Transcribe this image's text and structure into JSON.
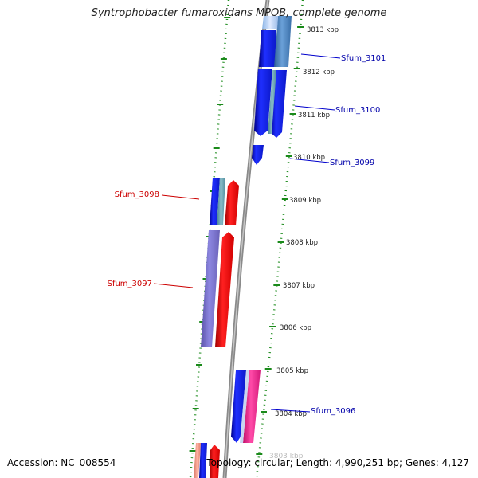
{
  "title": "Syntrophobacter fumaroxidans MPOB, complete genome",
  "accession": "Accession: NC_008554",
  "summary": "Topology: circular; Length: 4,990,251 bp; Genes: 4,127",
  "colors": {
    "backbone": "#7f7f7f",
    "dots": "#1a8a1a",
    "forward_gene": "#0000ee",
    "reverse_gene": "#ee1111",
    "forward_label": "#0000aa",
    "reverse_label": "#cc0000"
  },
  "ticks": [
    "3813 kbp",
    "3812 kbp",
    "3811 kbp",
    "3810 kbp",
    "3809 kbp",
    "3808 kbp",
    "3807 kbp",
    "3806 kbp",
    "3805 kbp",
    "3804 kbp"
  ],
  "genes": [
    {
      "name": "Sfum_3101",
      "strand": "forward"
    },
    {
      "name": "Sfum_3100",
      "strand": "forward"
    },
    {
      "name": "Sfum_3099",
      "strand": "forward"
    },
    {
      "name": "Sfum_3098",
      "strand": "reverse"
    },
    {
      "name": "Sfum_3097",
      "strand": "reverse"
    },
    {
      "name": "Sfum_3096",
      "strand": "forward"
    }
  ]
}
